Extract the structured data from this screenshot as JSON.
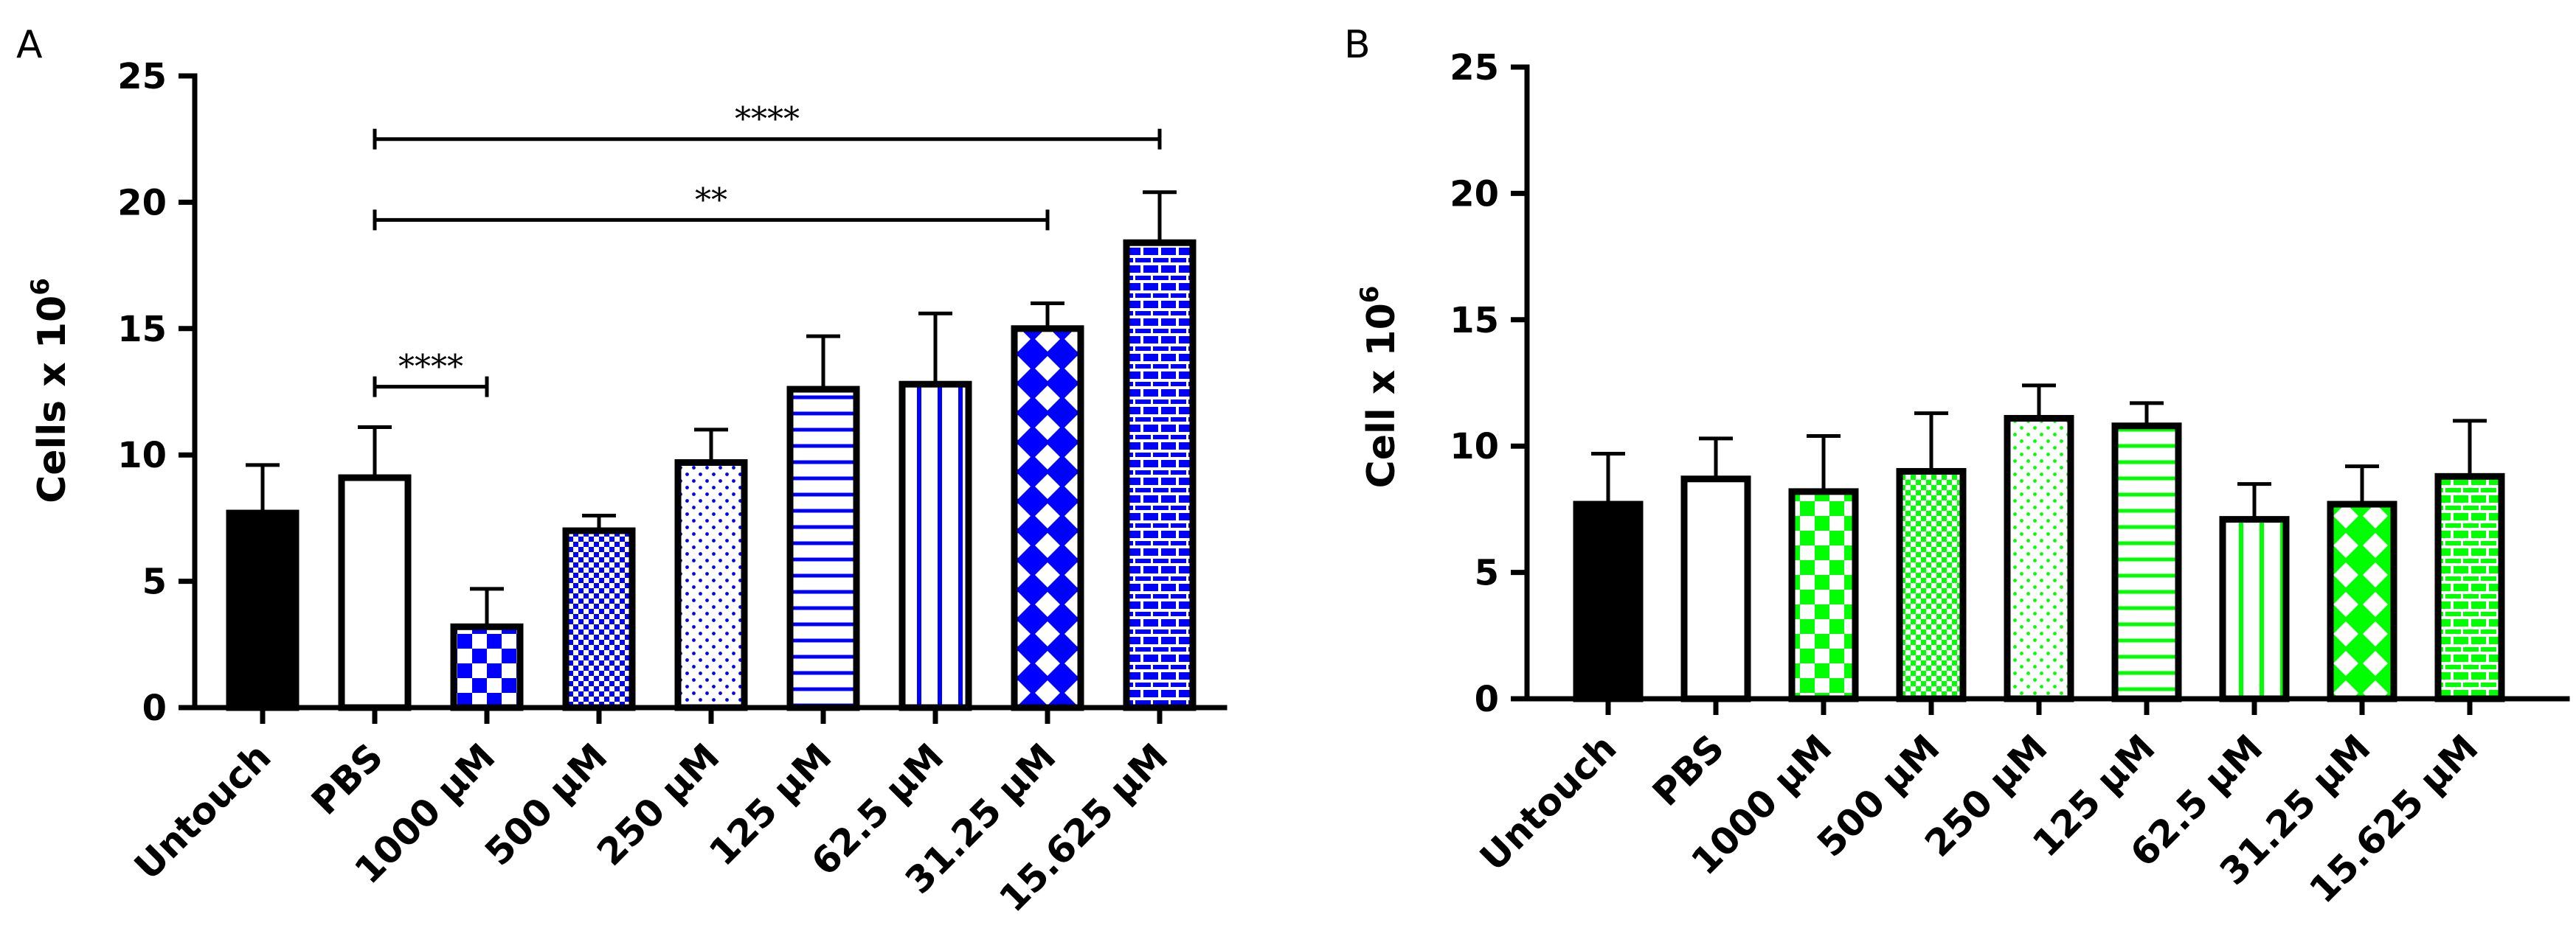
{
  "chart_data": [
    {
      "panel": "A",
      "type": "bar",
      "ylabel_base": "Cells x 10",
      "ylabel_sup": "6",
      "ylim": [
        0,
        25
      ],
      "yticks": [
        "0",
        "5",
        "10",
        "15",
        "20",
        "25"
      ],
      "categories": [
        "Untouch",
        "PBS",
        "1000 μM",
        "500 μM",
        "250 μM",
        "125 μM",
        "62.5 μM",
        "31.25 μM",
        "15.625 μM"
      ],
      "values": [
        7.7,
        9.1,
        3.2,
        7.0,
        9.7,
        12.6,
        12.8,
        15.0,
        18.4
      ],
      "errors": [
        1.9,
        2.0,
        1.5,
        0.6,
        1.3,
        2.1,
        2.8,
        1.0,
        2.0
      ],
      "fill_color": "#0000ff",
      "patterns": [
        "solid-black",
        "white",
        "checker-large",
        "checker-small",
        "dots",
        "hlines",
        "vlines",
        "diamonds",
        "bricks"
      ],
      "significance": [
        {
          "from": 1,
          "to": 8,
          "label": "****",
          "level": 22.5
        },
        {
          "from": 1,
          "to": 7,
          "label": "**",
          "level": 19.3
        },
        {
          "from": 1,
          "to": 2,
          "label": "****",
          "level": 12.7
        }
      ]
    },
    {
      "panel": "B",
      "type": "bar",
      "ylabel_base": "Cell x 10",
      "ylabel_sup": "6",
      "ylim": [
        0,
        25
      ],
      "yticks": [
        "0",
        "5",
        "10",
        "15",
        "20",
        "25"
      ],
      "categories": [
        "Untouch",
        "PBS",
        "1000 μM",
        "500 μM",
        "250 μM",
        "125 μM",
        "62.5 μM",
        "31.25 μM",
        "15.625 μM"
      ],
      "values": [
        7.7,
        8.7,
        8.2,
        9.0,
        11.1,
        10.8,
        7.1,
        7.7,
        8.8
      ],
      "errors": [
        2.0,
        1.6,
        2.2,
        2.3,
        1.3,
        0.9,
        1.4,
        1.5,
        2.2
      ],
      "fill_color": "#00ff00",
      "patterns": [
        "solid-black",
        "white",
        "checker-large",
        "checker-small",
        "dots",
        "hlines",
        "vlines",
        "diamonds",
        "bricks"
      ],
      "significance": []
    }
  ]
}
